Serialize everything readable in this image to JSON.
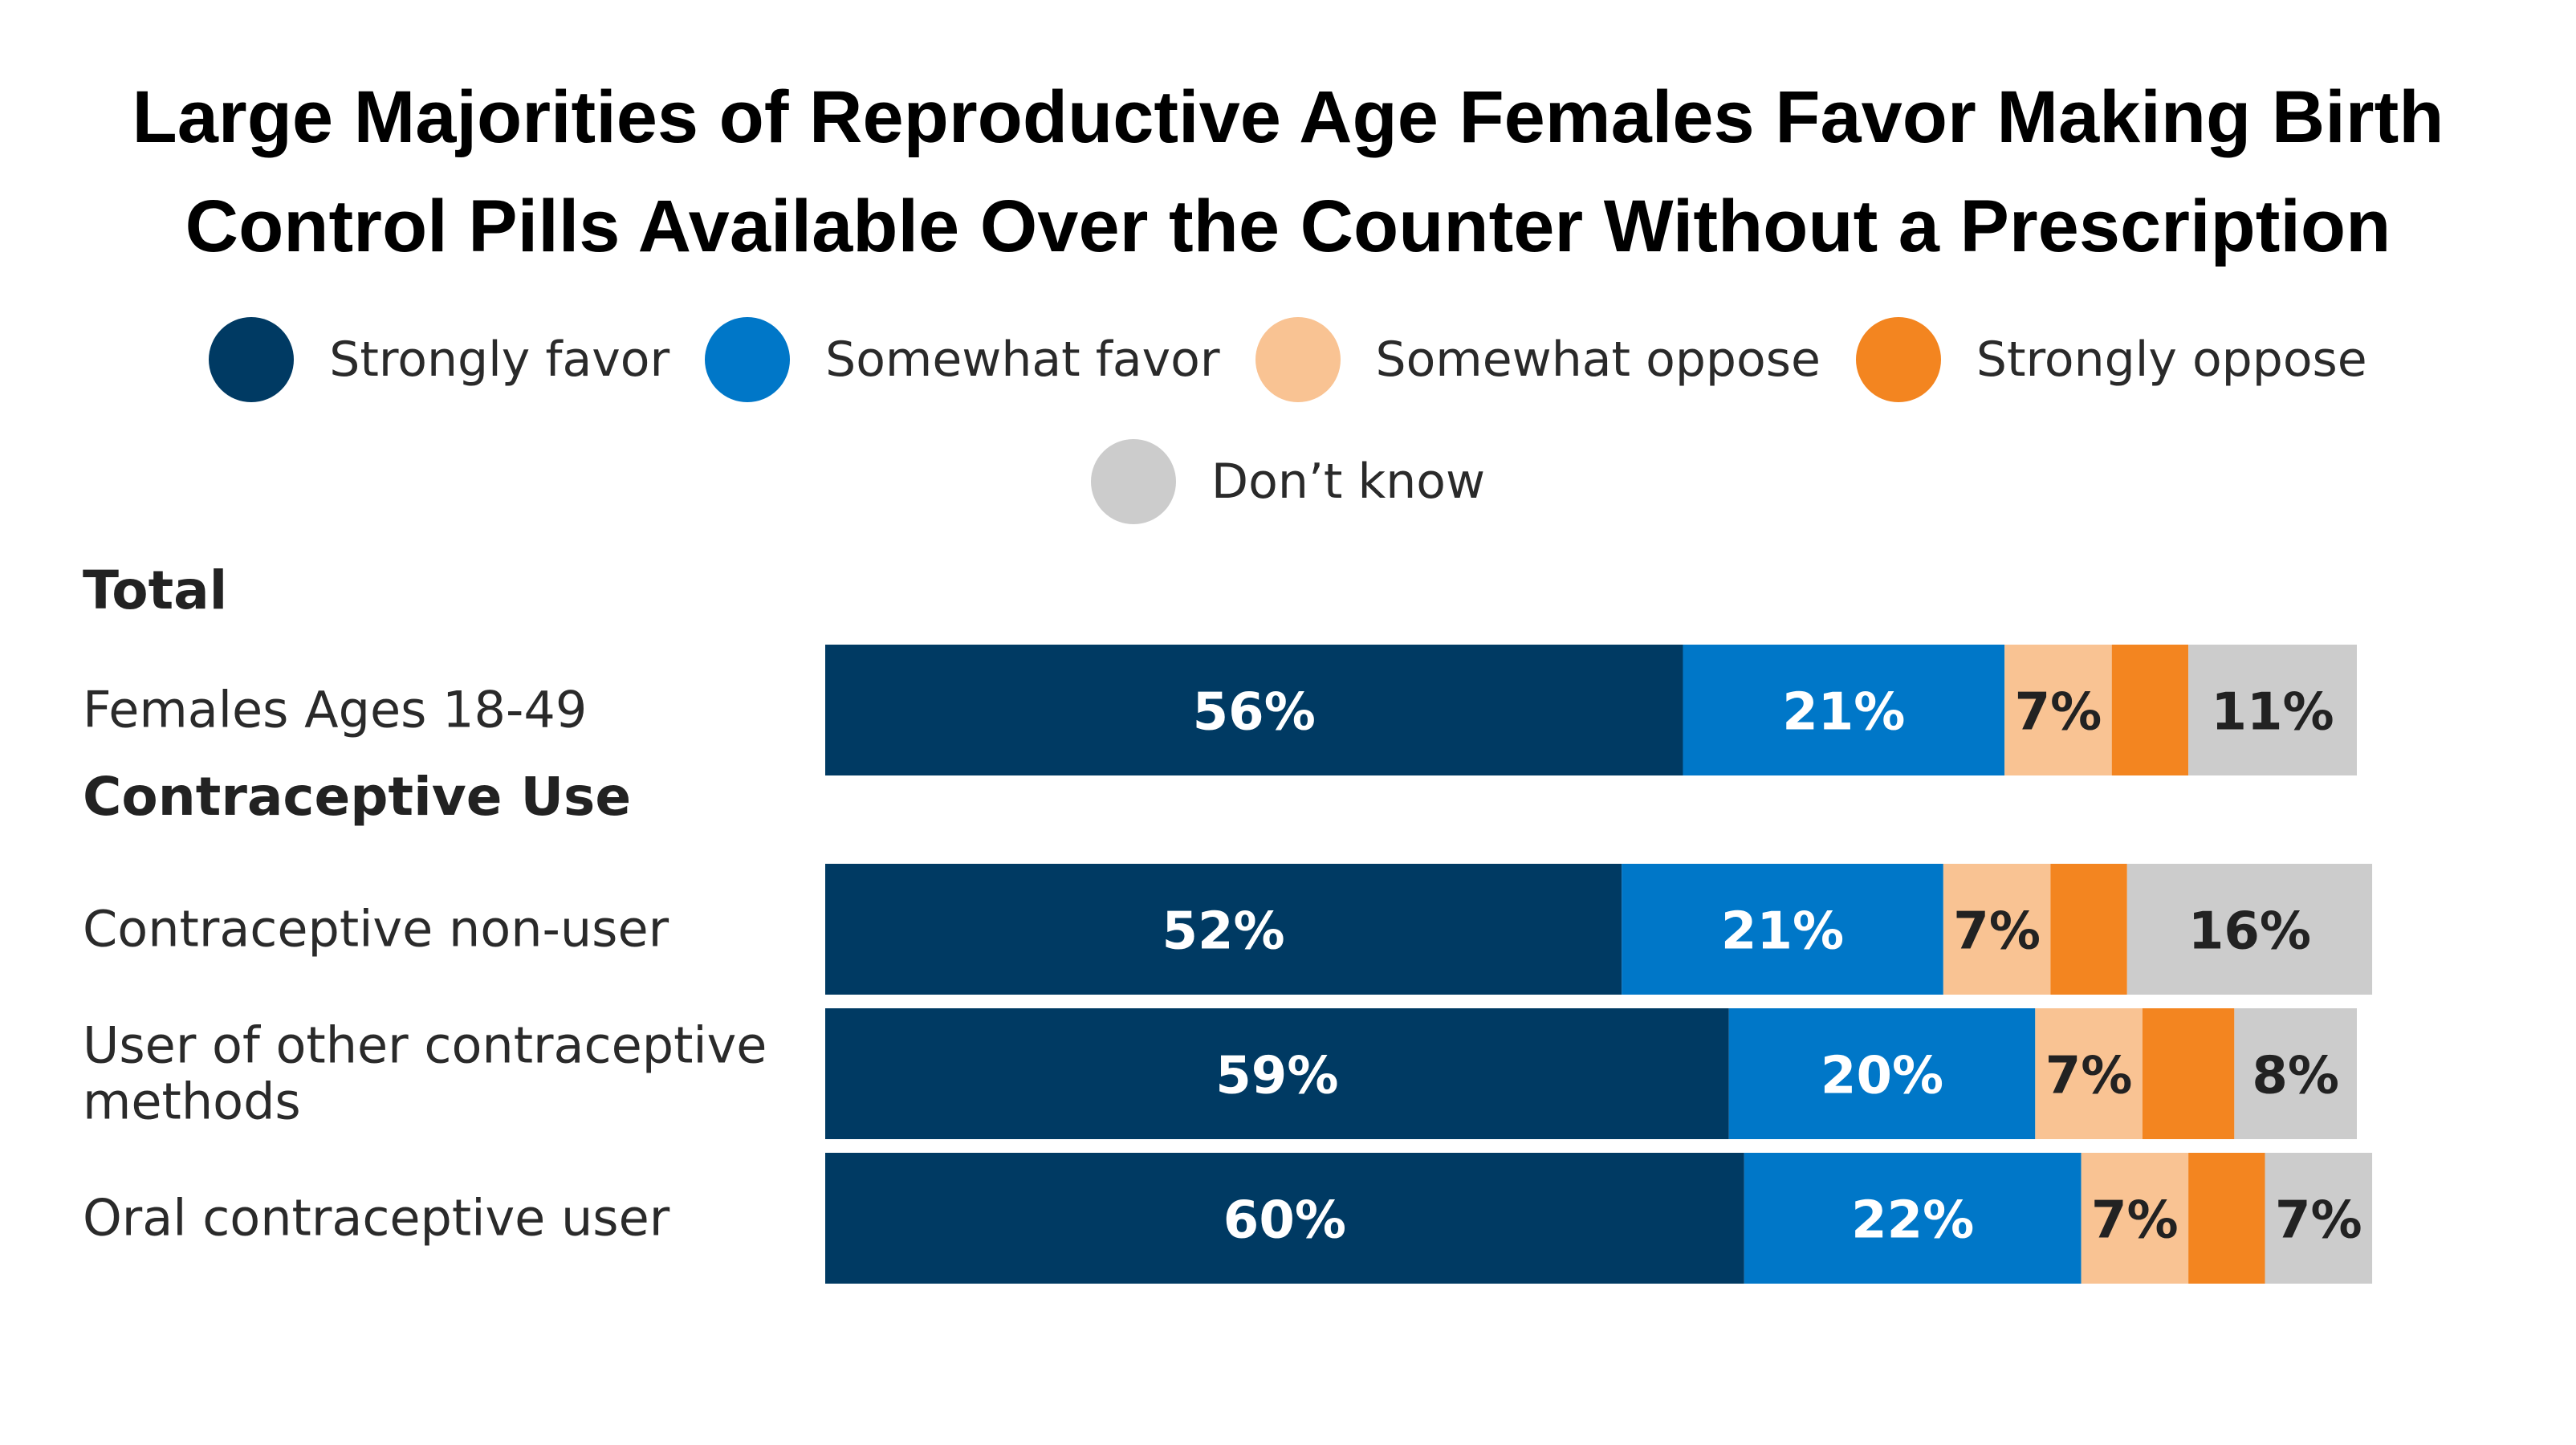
{
  "chart_data": {
    "type": "bar",
    "orientation": "horizontal",
    "stacked": true,
    "title": "Large Majorities of Reproductive Age Females Favor Making Birth Control Pills Available Over the Counter Without a Prescription",
    "title_lines": [
      "Large Majorities of Reproductive Age Females Favor Making Birth",
      "Control Pills Available Over the Counter Without a Prescription"
    ],
    "legend_position": "top",
    "grid": false,
    "series": [
      {
        "name": "Strongly favor",
        "color": "#003a63",
        "values": [
          56,
          52,
          59,
          60
        ],
        "labels": [
          "56%",
          "52%",
          "59%",
          "60%"
        ]
      },
      {
        "name": "Somewhat favor",
        "color": "#0077c8",
        "values": [
          21,
          21,
          20,
          22
        ],
        "labels": [
          "21%",
          "21%",
          "20%",
          "22%"
        ]
      },
      {
        "name": "Somewhat oppose",
        "color": "#f9c393",
        "values": [
          7,
          7,
          7,
          7
        ],
        "labels": [
          "7%",
          "7%",
          "7%",
          "7%"
        ]
      },
      {
        "name": "Strongly oppose",
        "color": "#f38520",
        "values": [
          5,
          5,
          6,
          5
        ],
        "labels": [
          "",
          "",
          "",
          ""
        ]
      },
      {
        "name": "Don’t know",
        "color": "#cccccc",
        "values": [
          11,
          16,
          8,
          7
        ],
        "labels": [
          "11%",
          "16%",
          "8%",
          "7%"
        ]
      }
    ],
    "groups": [
      {
        "header": "Total",
        "categories": [
          "Females Ages 18-49"
        ]
      },
      {
        "header": "Contraceptive Use",
        "categories": [
          "Contraceptive non-user",
          "User of other contraceptive methods",
          "Oral contraceptive user"
        ]
      }
    ],
    "categories": [
      "Females Ages 18-49",
      "Contraceptive non-user",
      "User of other contraceptive methods",
      "Oral contraceptive user"
    ],
    "category_label_lines": [
      [
        "Females Ages 18-49"
      ],
      [
        "Contraceptive non-user"
      ],
      [
        "User of other contraceptive",
        "methods"
      ],
      [
        "Oral contraceptive user"
      ]
    ],
    "xlim": [
      0,
      100
    ]
  }
}
